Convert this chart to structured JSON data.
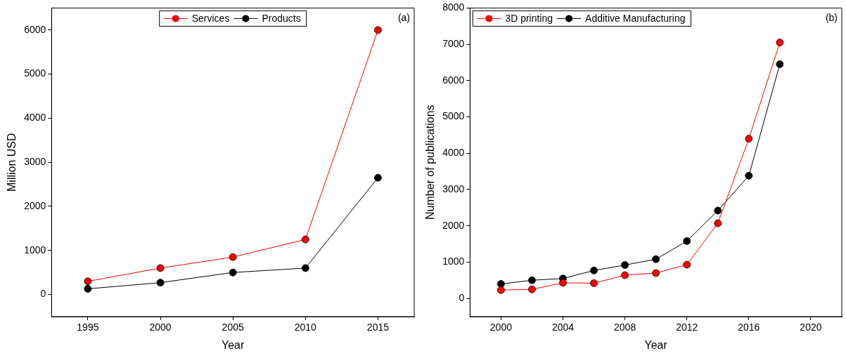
{
  "chart_data": [
    {
      "type": "line",
      "xlabel": "Year",
      "ylabel": "Million USD",
      "annotations": [
        "(a)"
      ],
      "x": [
        1995,
        2000,
        2005,
        2010,
        2015
      ],
      "series": [
        {
          "name": "Services",
          "color": "#ff0000",
          "values": [
            300,
            600,
            850,
            1250,
            6000
          ]
        },
        {
          "name": "Products",
          "color": "#000000",
          "values": [
            130,
            270,
            500,
            600,
            2650
          ]
        }
      ],
      "xlim": [
        1992.5,
        2017.5
      ],
      "xticks": [
        1995,
        2000,
        2005,
        2010,
        2015
      ],
      "ylim": [
        -500,
        6500
      ],
      "yticks": [
        0,
        1000,
        2000,
        3000,
        4000,
        5000,
        6000
      ],
      "grid": false,
      "legend": "top",
      "marker": "circle",
      "line_style": "solid"
    },
    {
      "type": "line",
      "xlabel": "Year",
      "ylabel": "Number of publications",
      "annotations": [
        "(b)"
      ],
      "x": [
        2000,
        2002,
        2004,
        2006,
        2008,
        2010,
        2012,
        2014,
        2016,
        2018
      ],
      "series": [
        {
          "name": "3D printing",
          "color": "#ff0000",
          "values": [
            230,
            250,
            430,
            420,
            640,
            700,
            930,
            2070,
            4400,
            7050
          ]
        },
        {
          "name": "Additive Manufacturing",
          "color": "#000000",
          "values": [
            400,
            500,
            550,
            770,
            920,
            1080,
            1580,
            2420,
            3380,
            6450
          ]
        }
      ],
      "xlim": [
        1998,
        2022
      ],
      "xticks": [
        2000,
        2004,
        2008,
        2012,
        2016,
        2020
      ],
      "ylim": [
        -500,
        8000
      ],
      "yticks": [
        0,
        1000,
        2000,
        3000,
        4000,
        5000,
        6000,
        7000,
        8000
      ],
      "grid": false,
      "legend": "top left",
      "marker": "circle",
      "line_style": "solid"
    }
  ]
}
